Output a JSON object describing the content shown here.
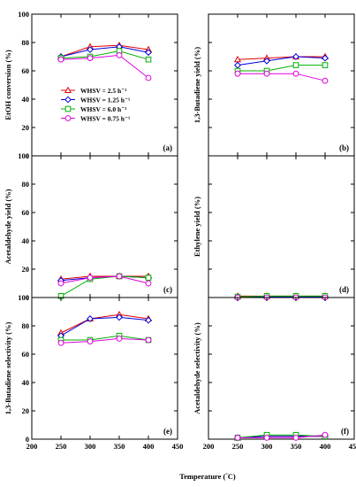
{
  "figure": {
    "xlabel": "Temperature (°C)",
    "legend": [
      {
        "label": "WHSV = 2.5 h⁻¹",
        "color": "#e00000",
        "marker": "triangle"
      },
      {
        "label": "WHSV = 1.25 h⁻¹",
        "color": "#0000e0",
        "marker": "diamond"
      },
      {
        "label": "WHSV = 6.0 h⁻¹",
        "color": "#00b000",
        "marker": "square"
      },
      {
        "label": "WHSV = 0.75 h⁻¹",
        "color": "#e000e0",
        "marker": "circle"
      }
    ]
  },
  "chart_data": [
    {
      "type": "line",
      "panel": "(a)",
      "ylabel": "EtOH conversion (%)",
      "xlim": [
        200,
        450
      ],
      "ylim": [
        0,
        100
      ],
      "x": [
        250,
        300,
        350,
        400
      ],
      "series": [
        {
          "name": "WHSV = 2.5 h⁻¹",
          "values": [
            70,
            77,
            78,
            75
          ]
        },
        {
          "name": "WHSV = 1.25 h⁻¹",
          "values": [
            70,
            75,
            77,
            73
          ]
        },
        {
          "name": "WHSV = 6.0 h⁻¹",
          "values": [
            69,
            70,
            74,
            68
          ]
        },
        {
          "name": "WHSV = 0.75 h⁻¹",
          "values": [
            68,
            69,
            71,
            55
          ]
        }
      ]
    },
    {
      "type": "line",
      "panel": "(b)",
      "ylabel": "1,3-Butadiene yield (%)",
      "xlim": [
        200,
        450
      ],
      "ylim": [
        0,
        100
      ],
      "x": [
        250,
        300,
        350,
        400
      ],
      "series": [
        {
          "name": "WHSV = 2.5 h⁻¹",
          "values": [
            68,
            69,
            70,
            70
          ]
        },
        {
          "name": "WHSV = 1.25 h⁻¹",
          "values": [
            64,
            67,
            70,
            69
          ]
        },
        {
          "name": "WHSV = 6.0 h⁻¹",
          "values": [
            60,
            60,
            64,
            64
          ]
        },
        {
          "name": "WHSV = 0.75 h⁻¹",
          "values": [
            58,
            58,
            58,
            53
          ]
        }
      ]
    },
    {
      "type": "line",
      "panel": "(c)",
      "ylabel": "Acetaldehyde yield (%)",
      "xlim": [
        200,
        450
      ],
      "ylim": [
        0,
        100
      ],
      "x": [
        250,
        300,
        350,
        400
      ],
      "series": [
        {
          "name": "WHSV = 2.5 h⁻¹",
          "values": [
            13,
            15,
            15,
            15
          ]
        },
        {
          "name": "WHSV = 1.25 h⁻¹",
          "values": [
            12,
            14,
            15,
            14
          ]
        },
        {
          "name": "WHSV = 6.0 h⁻¹",
          "values": [
            1,
            13,
            15,
            14
          ]
        },
        {
          "name": "WHSV = 0.75 h⁻¹",
          "values": [
            10,
            14,
            15,
            10
          ]
        }
      ]
    },
    {
      "type": "line",
      "panel": "(d)",
      "ylabel": "Ethylene yield (%)",
      "xlim": [
        200,
        450
      ],
      "ylim": [
        0,
        100
      ],
      "x": [
        250,
        300,
        350,
        400
      ],
      "series": [
        {
          "name": "WHSV = 2.5 h⁻¹",
          "values": [
            1,
            1,
            1,
            1
          ]
        },
        {
          "name": "WHSV = 1.25 h⁻¹",
          "values": [
            0.5,
            0.5,
            0.5,
            0.5
          ]
        },
        {
          "name": "WHSV = 6.0 h⁻¹",
          "values": [
            0.5,
            1,
            1,
            1
          ]
        },
        {
          "name": "WHSV = 0.75 h⁻¹",
          "values": [
            0,
            0,
            0,
            0
          ]
        }
      ]
    },
    {
      "type": "line",
      "panel": "(e)",
      "ylabel": "1,3-Butadiene selectivity (%)",
      "xlim": [
        200,
        450
      ],
      "ylim": [
        0,
        100
      ],
      "x": [
        250,
        300,
        350,
        400
      ],
      "series": [
        {
          "name": "WHSV = 2.5 h⁻¹",
          "values": [
            75,
            85,
            88,
            85
          ]
        },
        {
          "name": "WHSV = 1.25 h⁻¹",
          "values": [
            73,
            85,
            86,
            84
          ]
        },
        {
          "name": "WHSV = 6.0 h⁻¹",
          "values": [
            70,
            70,
            73,
            70
          ]
        },
        {
          "name": "WHSV = 0.75 h⁻¹",
          "values": [
            68,
            69,
            71,
            70
          ]
        }
      ]
    },
    {
      "type": "line",
      "panel": "(f)",
      "ylabel": "Acetaldehyde selectivity (%)",
      "xlim": [
        200,
        450
      ],
      "ylim": [
        0,
        100
      ],
      "x": [
        250,
        300,
        350,
        400
      ],
      "series": [
        {
          "name": "WHSV = 2.5 h⁻¹",
          "values": [
            1,
            2,
            2,
            2
          ]
        },
        {
          "name": "WHSV = 1.25 h⁻¹",
          "values": [
            1,
            2,
            2,
            2
          ]
        },
        {
          "name": "WHSV = 6.0 h⁻¹",
          "values": [
            1,
            3,
            3,
            2
          ]
        },
        {
          "name": "WHSV = 0.75 h⁻¹",
          "values": [
            1,
            1,
            1,
            3
          ]
        }
      ]
    }
  ]
}
